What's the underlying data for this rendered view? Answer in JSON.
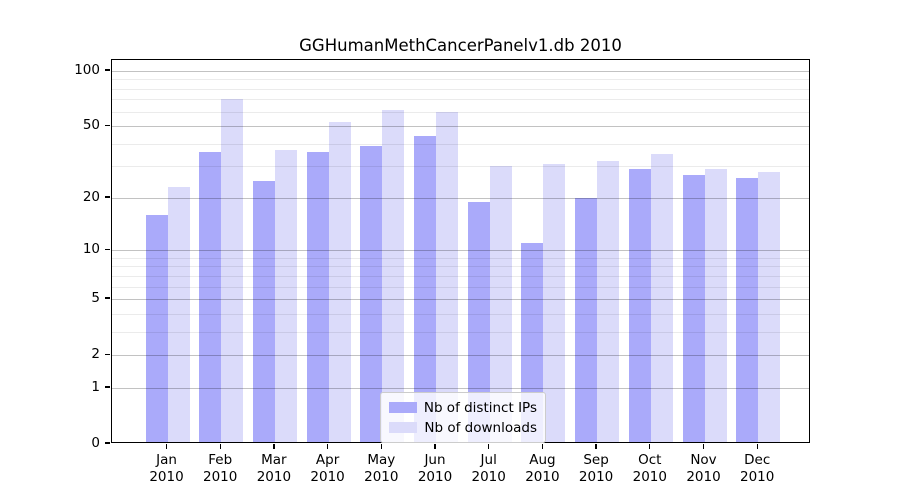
{
  "title": "GGHumanMethCancerPanelv1.db 2010",
  "chart_data": {
    "type": "bar",
    "title": "GGHumanMethCancerPanelv1.db 2010",
    "xlabel": "",
    "ylabel": "",
    "scale": "log1p",
    "grid": true,
    "legend_position": "lower center",
    "categories": [
      "Jan 2010",
      "Feb 2010",
      "Mar 2010",
      "Apr 2010",
      "May 2010",
      "Jun 2010",
      "Jul 2010",
      "Aug 2010",
      "Sep 2010",
      "Oct 2010",
      "Nov 2010",
      "Dec 2010"
    ],
    "series": [
      {
        "name": "Nb of distinct IPs",
        "color": "#aaaafa",
        "values": [
          16,
          36,
          25,
          36,
          39,
          44,
          19,
          11,
          20,
          29,
          27,
          26
        ]
      },
      {
        "name": "Nb of downloads",
        "color": "#dbdbfa",
        "values": [
          23,
          70,
          37,
          53,
          61,
          60,
          30,
          31,
          32,
          35,
          29,
          28
        ]
      }
    ],
    "y_ticks": [
      0,
      1,
      2,
      5,
      10,
      20,
      50,
      100
    ],
    "y_minor_gridlines": [
      3,
      4,
      6,
      7,
      8,
      9,
      30,
      40,
      60,
      70,
      80,
      90
    ],
    "ylim": [
      0,
      115
    ]
  }
}
